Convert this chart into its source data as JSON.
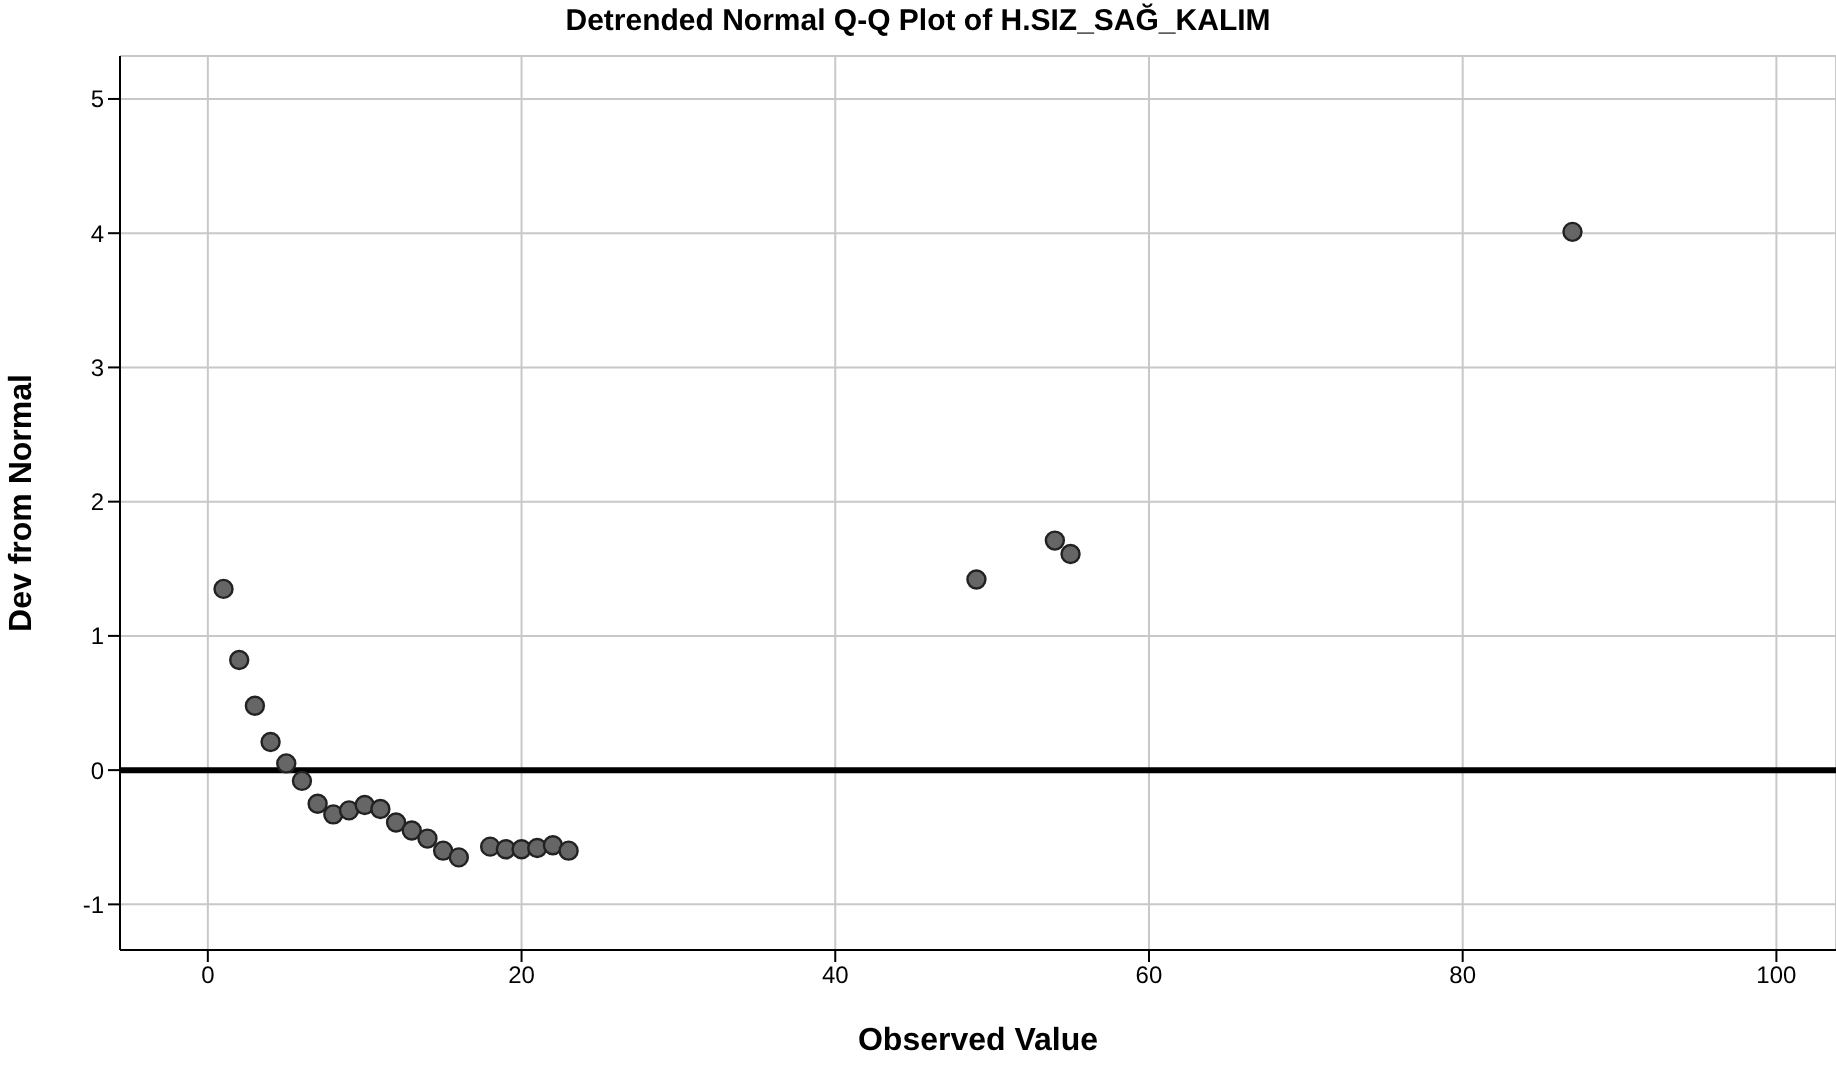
{
  "chart_data": {
    "type": "scatter",
    "title": "Detrended Normal Q-Q Plot of H.SIZ_SAĞ_KALIM",
    "xlabel": "Observed Value",
    "ylabel": "Dev from Normal",
    "x": [
      1,
      2,
      3,
      4,
      5,
      6,
      7,
      8,
      9,
      10,
      11,
      12,
      13,
      14,
      15,
      16,
      18,
      19,
      20,
      21,
      22,
      23,
      49,
      54,
      55,
      87
    ],
    "series": [
      {
        "color": "#666666",
        "values": [
          1.35,
          0.82,
          0.48,
          0.21,
          0.05,
          -0.08,
          -0.25,
          -0.33,
          -0.3,
          -0.26,
          -0.29,
          -0.39,
          -0.45,
          -0.51,
          -0.6,
          -0.65,
          -0.57,
          -0.59,
          -0.59,
          -0.58,
          -0.56,
          -0.6,
          1.42,
          1.71,
          1.61,
          4.01
        ]
      }
    ],
    "xlim": [
      -5.6,
      103.8
    ],
    "xticks": [
      0,
      20,
      40,
      60,
      80,
      100
    ],
    "ylim": [
      -1.34,
      5.32
    ],
    "yticks": [
      -1,
      0,
      1,
      2,
      3,
      4,
      5
    ],
    "grid": true,
    "marker": "circle",
    "ref_lines": [
      {
        "axis": "y",
        "value": 0,
        "color": "#000000"
      }
    ]
  }
}
